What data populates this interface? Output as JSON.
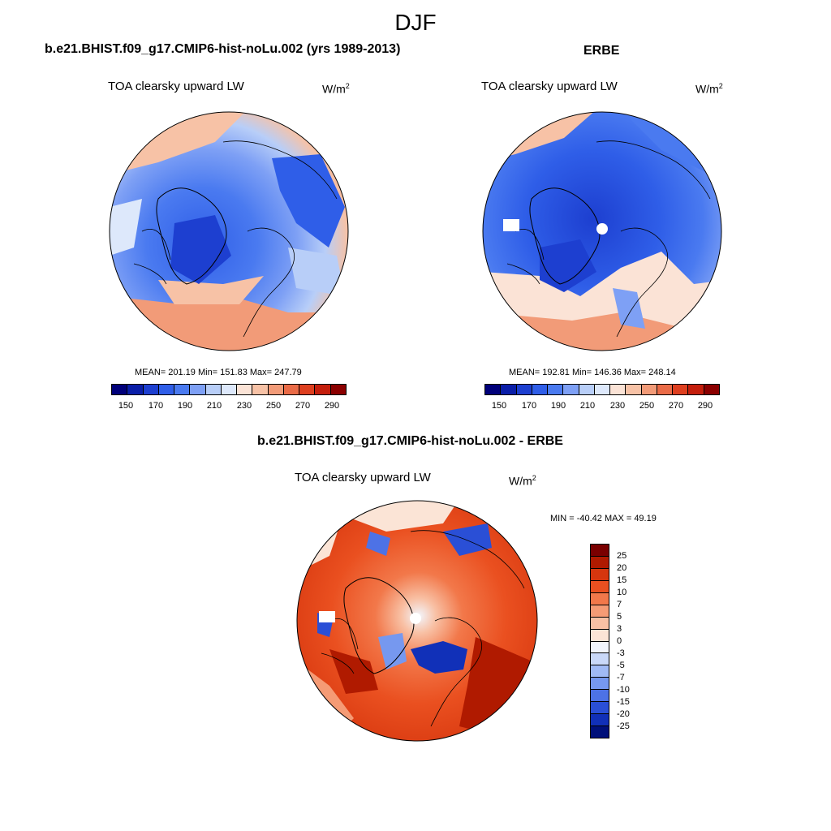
{
  "figure": {
    "title": "DJF"
  },
  "panels": [
    {
      "title": "b.e21.BHIST.f09_g17.CMIP6-hist-noLu.002 (yrs 1989-2013)",
      "variable": "TOA clearsky upward LW",
      "units_base": "W/m",
      "units_exp": "2",
      "stats": "MEAN= 201.19  Min= 151.83  Max= 247.79",
      "colorbar_labels": [
        "150",
        "170",
        "190",
        "210",
        "230",
        "250",
        "270",
        "290"
      ],
      "center_gap": false
    },
    {
      "title": "ERBE",
      "variable": "TOA clearsky upward LW",
      "units_base": "W/m",
      "units_exp": "2",
      "stats": "MEAN= 192.81  Min= 146.36  Max= 248.14",
      "colorbar_labels": [
        "150",
        "170",
        "190",
        "210",
        "230",
        "250",
        "270",
        "290"
      ],
      "center_gap": true
    },
    {
      "title": "b.e21.BHIST.f09_g17.CMIP6-hist-noLu.002 - ERBE",
      "variable": "TOA clearsky upward LW",
      "units_base": "W/m",
      "units_exp": "2",
      "stats": "MIN = -40.42 MAX =  49.19",
      "colorbar_labels": [
        "25",
        "20",
        "15",
        "10",
        "7",
        "5",
        "3",
        "0",
        "-3",
        "-5",
        "-7",
        "-10",
        "-15",
        "-20",
        "-25"
      ],
      "center_gap": true
    }
  ],
  "colors": {
    "abs_scale": [
      "#00007a",
      "#0a1ea8",
      "#1d3fd0",
      "#2f5ee8",
      "#4a7af0",
      "#7ea0f5",
      "#b8cef8",
      "#dde8fb",
      "#fbe3d6",
      "#f7c2a6",
      "#f29b78",
      "#ea6b47",
      "#de3f1f",
      "#c41e0c",
      "#8b0000"
    ],
    "diff_scale": [
      "#7a0000",
      "#b01a00",
      "#d6360e",
      "#ea5020",
      "#f2784a",
      "#f59b75",
      "#f8c0a4",
      "#fbe4d6",
      "#f2f5fc",
      "#c9d8f8",
      "#a0baf5",
      "#7698ef",
      "#4d72e6",
      "#2a4fd6",
      "#1130b8",
      "#00107a"
    ]
  }
}
